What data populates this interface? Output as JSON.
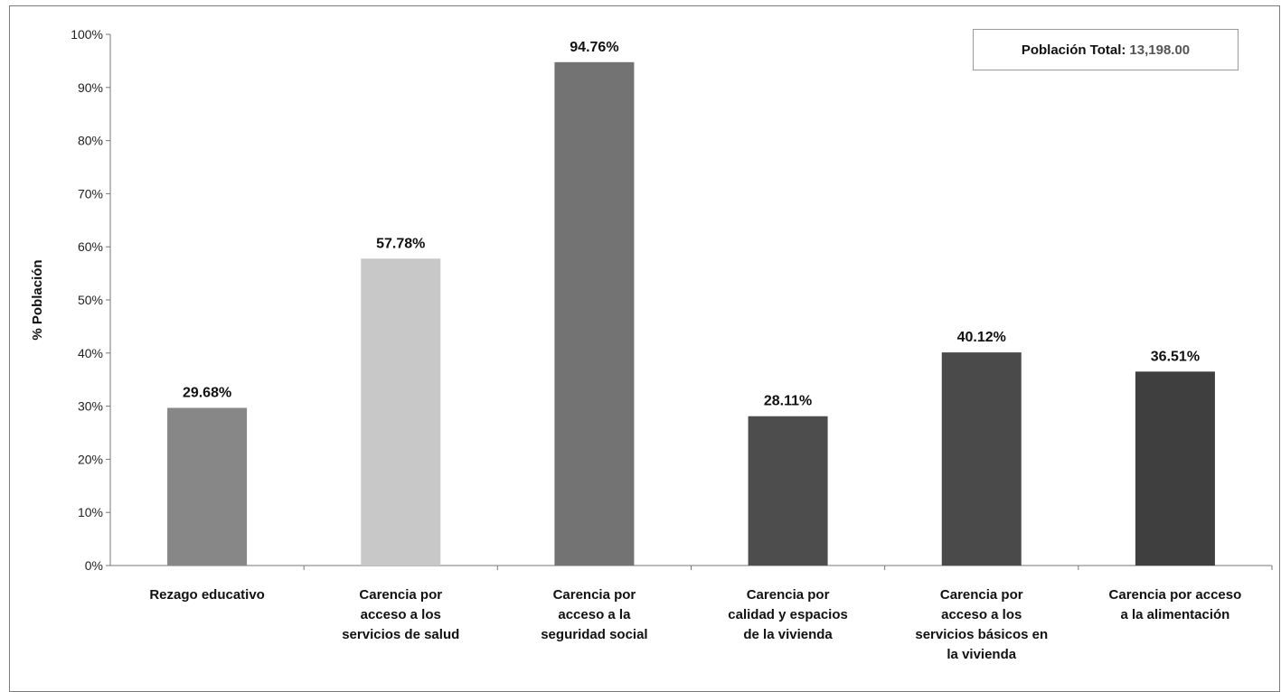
{
  "chart_data": {
    "type": "bar",
    "categories": [
      [
        "Rezago educativo"
      ],
      [
        "Carencia por",
        "acceso a los",
        "servicios de salud"
      ],
      [
        "Carencia por",
        "acceso a la",
        "seguridad social"
      ],
      [
        "Carencia por",
        "calidad y espacios",
        "de la vivienda"
      ],
      [
        "Carencia por",
        "acceso a los",
        "servicios básicos en",
        "la vivienda"
      ],
      [
        "Carencia por acceso",
        "a la alimentación"
      ]
    ],
    "values": [
      29.68,
      57.78,
      94.76,
      28.11,
      40.12,
      36.51
    ],
    "data_labels": [
      "29.68%",
      "57.78%",
      "94.76%",
      "28.11%",
      "40.12%",
      "36.51%"
    ],
    "bar_colors": [
      "#878787",
      "#c8c8c8",
      "#737373",
      "#4d4d4d",
      "#4a4a4a",
      "#3f3f3f"
    ],
    "ylabel": "% Población",
    "ylim": [
      0,
      100
    ],
    "yticks": [
      "0%",
      "10%",
      "20%",
      "30%",
      "40%",
      "50%",
      "60%",
      "70%",
      "80%",
      "90%",
      "100%"
    ],
    "grid": false,
    "legend": null
  },
  "infobox": {
    "label": "Población Total:",
    "value": "13,198.00"
  }
}
